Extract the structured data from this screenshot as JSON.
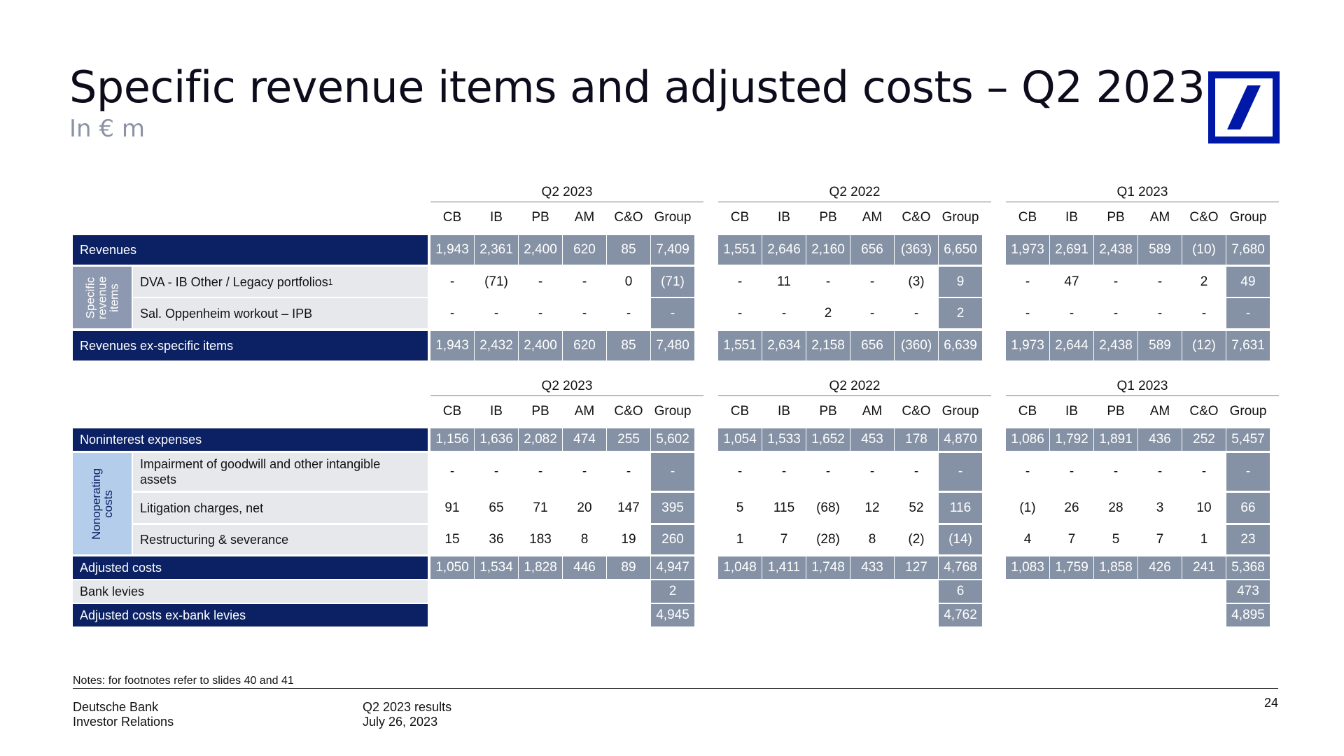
{
  "title": "Specific revenue items and adjusted costs – Q2 2023",
  "subtitle": "In € m",
  "col_headers": [
    "CB",
    "IB",
    "PB",
    "AM",
    "C&O",
    "Group"
  ],
  "period_labels": [
    "Q2 2023",
    "Q2 2022",
    "Q1 2023"
  ],
  "revenue_table": {
    "sidebar": "Specific revenue items",
    "rows": [
      {
        "label": "Revenues",
        "values": [
          [
            "1,943",
            "2,361",
            "2,400",
            "620",
            "85",
            "7,409"
          ],
          [
            "1,551",
            "2,646",
            "2,160",
            "656",
            "(363)",
            "6,650"
          ],
          [
            "1,973",
            "2,691",
            "2,438",
            "589",
            "(10)",
            "7,680"
          ]
        ]
      },
      {
        "label": "DVA - IB Other / Legacy portfolios",
        "footnote": "1",
        "values": [
          [
            "-",
            "(71)",
            "-",
            "-",
            "0",
            "(71)"
          ],
          [
            "-",
            "11",
            "-",
            "-",
            "(3)",
            "9"
          ],
          [
            "-",
            "47",
            "-",
            "-",
            "2",
            "49"
          ]
        ]
      },
      {
        "label": "Sal. Oppenheim workout – IPB",
        "values": [
          [
            "-",
            "-",
            "-",
            "-",
            "-",
            "-"
          ],
          [
            "-",
            "-",
            "2",
            "-",
            "-",
            "2"
          ],
          [
            "-",
            "-",
            "-",
            "-",
            "-",
            "-"
          ]
        ]
      },
      {
        "label": "Revenues ex-specific items",
        "values": [
          [
            "1,943",
            "2,432",
            "2,400",
            "620",
            "85",
            "7,480"
          ],
          [
            "1,551",
            "2,634",
            "2,158",
            "656",
            "(360)",
            "6,639"
          ],
          [
            "1,973",
            "2,644",
            "2,438",
            "589",
            "(12)",
            "7,631"
          ]
        ]
      }
    ]
  },
  "cost_table": {
    "sidebar": "Nonoperating costs",
    "rows": [
      {
        "label": "Noninterest expenses",
        "values": [
          [
            "1,156",
            "1,636",
            "2,082",
            "474",
            "255",
            "5,602"
          ],
          [
            "1,054",
            "1,533",
            "1,652",
            "453",
            "178",
            "4,870"
          ],
          [
            "1,086",
            "1,792",
            "1,891",
            "436",
            "252",
            "5,457"
          ]
        ]
      },
      {
        "label": "Impairment of goodwill and other intangible assets",
        "values": [
          [
            "-",
            "-",
            "-",
            "-",
            "-",
            "-"
          ],
          [
            "-",
            "-",
            "-",
            "-",
            "-",
            "-"
          ],
          [
            "-",
            "-",
            "-",
            "-",
            "-",
            "-"
          ]
        ]
      },
      {
        "label": "Litigation charges, net",
        "values": [
          [
            "91",
            "65",
            "71",
            "20",
            "147",
            "395"
          ],
          [
            "5",
            "115",
            "(68)",
            "12",
            "52",
            "116"
          ],
          [
            "(1)",
            "26",
            "28",
            "3",
            "10",
            "66"
          ]
        ]
      },
      {
        "label": "Restructuring & severance",
        "values": [
          [
            "15",
            "36",
            "183",
            "8",
            "19",
            "260"
          ],
          [
            "1",
            "7",
            "(28)",
            "8",
            "(2)",
            "(14)"
          ],
          [
            "4",
            "7",
            "5",
            "7",
            "1",
            "23"
          ]
        ]
      },
      {
        "label": "Adjusted costs",
        "values": [
          [
            "1,050",
            "1,534",
            "1,828",
            "446",
            "89",
            "4,947"
          ],
          [
            "1,048",
            "1,411",
            "1,748",
            "433",
            "127",
            "4,768"
          ],
          [
            "1,083",
            "1,759",
            "1,858",
            "426",
            "241",
            "5,368"
          ]
        ]
      },
      {
        "label": "Bank levies",
        "values": [
          [
            "2"
          ],
          [
            "6"
          ],
          [
            "473"
          ]
        ]
      },
      {
        "label": "Adjusted costs ex-bank levies",
        "values": [
          [
            "4,945"
          ],
          [
            "4,762"
          ],
          [
            "4,895"
          ]
        ]
      }
    ]
  },
  "notes": "Notes: for footnotes refer to slides 40 and 41",
  "footer": {
    "company": "Deutsche Bank",
    "department": "Investor Relations",
    "report": "Q2 2023 results",
    "date": "July 26, 2023",
    "page": "24"
  },
  "colors": {
    "navy": "#0b2163",
    "slate": "#8592a5",
    "light_gray": "#e6e8ec",
    "light_blue": "#b3cdea",
    "logo_blue": "#0018a8"
  }
}
